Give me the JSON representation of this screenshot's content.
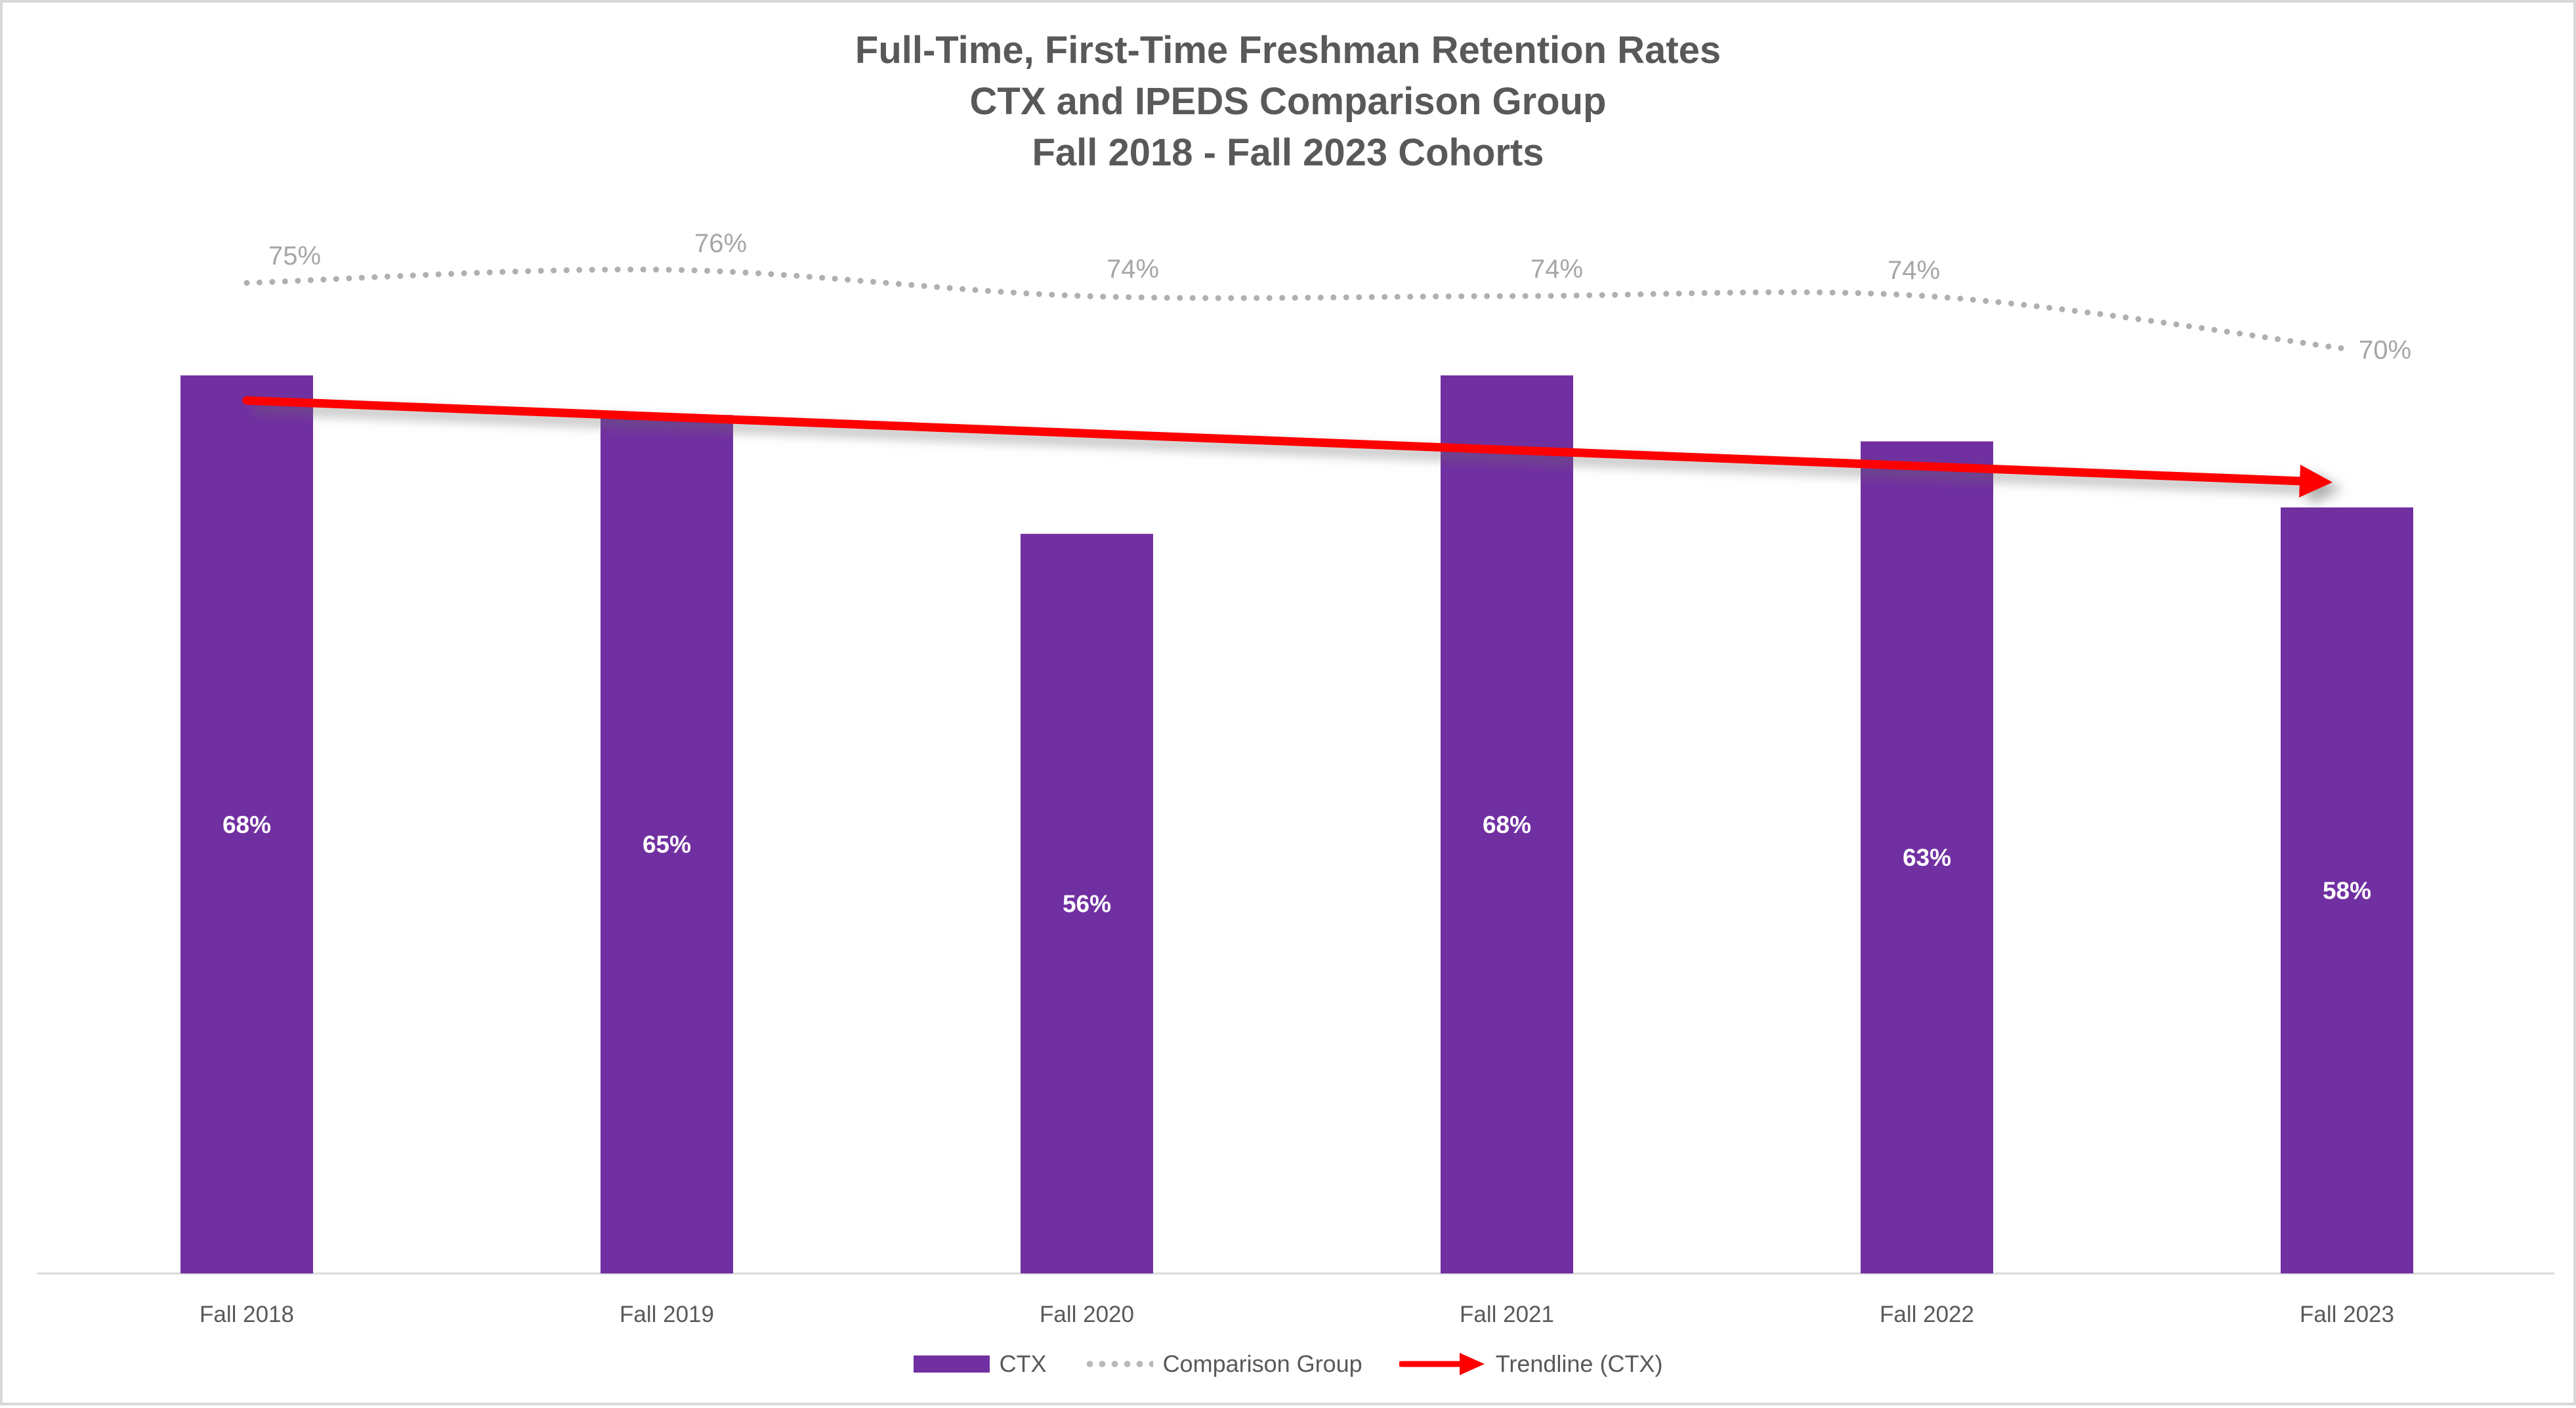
{
  "title": {
    "line1": "Full-Time, First-Time Freshman Retention Rates",
    "line2": "CTX and IPEDS Comparison Group",
    "line3": "Fall 2018 - Fall 2023 Cohorts"
  },
  "chart_data": {
    "type": "bar",
    "categories": [
      "Fall 2018",
      "Fall 2019",
      "Fall 2020",
      "Fall 2021",
      "Fall 2022",
      "Fall 2023"
    ],
    "series": [
      {
        "name": "CTX",
        "type": "bar",
        "color": "#7130A1",
        "values": [
          68,
          65,
          56,
          68,
          63,
          58
        ],
        "data_labels": [
          "68%",
          "65%",
          "56%",
          "68%",
          "63%",
          "58%"
        ],
        "label_color": "#ffffff",
        "label_position": "center"
      },
      {
        "name": "Comparison Group",
        "type": "line",
        "line_style": "dotted",
        "color": "#b0b0b0",
        "values": [
          75,
          76,
          74,
          74,
          74,
          70
        ],
        "data_labels": [
          "75%",
          "76%",
          "74%",
          "74%",
          "74%",
          "70%"
        ],
        "label_color": "#a6a6a6",
        "label_position": "above"
      },
      {
        "name": "Trendline (CTX)",
        "type": "trendline",
        "color": "#ff0000",
        "start_value": 66.1,
        "end_value": 59.9
      }
    ],
    "ylim": [
      0,
      100
    ],
    "grid": false,
    "y_axis_visible": false,
    "legend_position": "bottom"
  },
  "legend": {
    "items": [
      {
        "label": "CTX",
        "marker": "purple-bar"
      },
      {
        "label": "Comparison Group",
        "marker": "dotted-line"
      },
      {
        "label": "Trendline (CTX)",
        "marker": "red-arrow"
      }
    ]
  },
  "colors": {
    "bar": "#7130A1",
    "comparison_line": "#b0b0b0",
    "comparison_label_text": "#a6a6a6",
    "trendline": "#ff0000",
    "axis_line": "#d9d9d9",
    "title_text": "#595959",
    "axis_text": "#595959",
    "bar_label_text": "#ffffff",
    "frame_border": "#d8d8d8"
  }
}
